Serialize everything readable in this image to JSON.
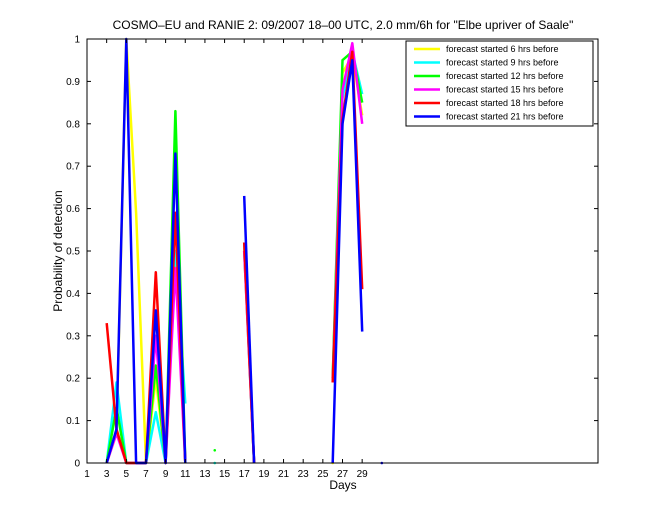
{
  "chart_data": {
    "type": "line",
    "title": "COSMO–EU and RANIE 2: 09/2007 18–00 UTC, 2.0 mm/6h for \"Elbe upriver of Saale\"",
    "xlabel": "Days",
    "ylabel": "Probability of detection",
    "xlim": [
      1,
      53
    ],
    "ylim": [
      0,
      1
    ],
    "xticks": [
      1,
      3,
      5,
      7,
      9,
      11,
      13,
      15,
      17,
      19,
      21,
      23,
      25,
      27,
      29
    ],
    "yticks": [
      0,
      0.1,
      0.2,
      0.3,
      0.4,
      0.5,
      0.6,
      0.7,
      0.8,
      0.9,
      1
    ],
    "ytick_labels": [
      "0",
      "0.1",
      "0.2",
      "0.3",
      "0.4",
      "0.5",
      "0.6",
      "0.7",
      "0.8",
      "0.9",
      "1"
    ],
    "legend_position": "top-right",
    "series": [
      {
        "name": "forecast started 6 hrs before",
        "color": "#ffff00",
        "segments": [
          [
            [
              3,
              0
            ],
            [
              4,
              0.07
            ],
            [
              5,
              1.0
            ],
            [
              6,
              0.59
            ],
            [
              7,
              0
            ],
            [
              8,
              0.2
            ],
            [
              9,
              0
            ],
            [
              10,
              0.5
            ],
            [
              11,
              0
            ]
          ],
          [
            [
              17,
              0.52
            ],
            [
              18,
              0
            ]
          ],
          [
            [
              26,
              0.2
            ],
            [
              27,
              0.92
            ],
            [
              28,
              0.96
            ],
            [
              29,
              0.82
            ]
          ]
        ],
        "points": [
          [
            14,
            0
          ],
          [
            26,
            0
          ]
        ]
      },
      {
        "name": "forecast started 9 hrs before",
        "color": "#00ffff",
        "segments": [
          [
            [
              3,
              0
            ],
            [
              4,
              0.19
            ],
            [
              5,
              0
            ],
            [
              6,
              0
            ],
            [
              7,
              0
            ],
            [
              8,
              0.12
            ],
            [
              9,
              0
            ],
            [
              10,
              0.5
            ],
            [
              11,
              0.14
            ]
          ],
          [
            [
              17,
              0.52
            ],
            [
              18,
              0
            ]
          ],
          [
            [
              26,
              0.2
            ],
            [
              27,
              0.86
            ],
            [
              28,
              0.97
            ],
            [
              29,
              0.87
            ]
          ]
        ],
        "points": [
          [
            14,
            0
          ]
        ]
      },
      {
        "name": "forecast started 12 hrs before",
        "color": "#00ff00",
        "segments": [
          [
            [
              3,
              0
            ],
            [
              4,
              0.13
            ],
            [
              5,
              0
            ],
            [
              6,
              0
            ],
            [
              7,
              0
            ],
            [
              8,
              0.23
            ],
            [
              9,
              0
            ],
            [
              10,
              0.83
            ],
            [
              11,
              0
            ]
          ],
          [
            [
              17,
              0.5
            ],
            [
              18,
              0
            ]
          ],
          [
            [
              26,
              0.2
            ],
            [
              27,
              0.95
            ],
            [
              28,
              0.97
            ],
            [
              29,
              0.85
            ]
          ]
        ],
        "points": [
          [
            14,
            0.03
          ]
        ]
      },
      {
        "name": "forecast started 15 hrs before",
        "color": "#ff00ff",
        "segments": [
          [
            [
              3,
              0
            ],
            [
              4,
              0.07
            ],
            [
              5,
              0
            ],
            [
              6,
              0
            ],
            [
              7,
              0
            ],
            [
              8,
              0.3
            ],
            [
              9,
              0
            ],
            [
              10,
              0.46
            ],
            [
              11,
              0
            ]
          ],
          [
            [
              17,
              0.5
            ],
            [
              18,
              0
            ]
          ],
          [
            [
              26,
              0.19
            ],
            [
              27,
              0.88
            ],
            [
              28,
              0.99
            ],
            [
              29,
              0.8
            ]
          ]
        ],
        "points": []
      },
      {
        "name": "forecast started 18 hrs before",
        "color": "#ff0000",
        "segments": [
          [
            [
              3,
              0.33
            ],
            [
              4,
              0.08
            ],
            [
              5,
              0
            ],
            [
              6,
              0
            ],
            [
              7,
              0
            ],
            [
              8,
              0.45
            ],
            [
              9,
              0
            ],
            [
              10,
              0.59
            ],
            [
              11,
              0
            ]
          ],
          [
            [
              17,
              0.52
            ],
            [
              18,
              0
            ]
          ],
          [
            [
              26,
              0.19
            ],
            [
              27,
              0.81
            ],
            [
              28,
              0.97
            ],
            [
              29,
              0.41
            ]
          ]
        ],
        "points": []
      },
      {
        "name": "forecast started 21 hrs before",
        "color": "#0000ff",
        "segments": [
          [
            [
              3,
              0
            ],
            [
              4,
              0.08
            ],
            [
              5,
              1.0
            ],
            [
              6,
              0
            ],
            [
              7,
              0
            ],
            [
              8,
              0.36
            ],
            [
              9,
              0
            ],
            [
              10,
              0.73
            ],
            [
              11,
              0
            ]
          ],
          [
            [
              17,
              0.63
            ],
            [
              18,
              0
            ]
          ],
          [
            [
              26,
              0
            ],
            [
              27,
              0.8
            ],
            [
              28,
              0.95
            ],
            [
              29,
              0.31
            ]
          ]
        ],
        "points": [
          [
            31,
            0
          ]
        ]
      }
    ]
  }
}
